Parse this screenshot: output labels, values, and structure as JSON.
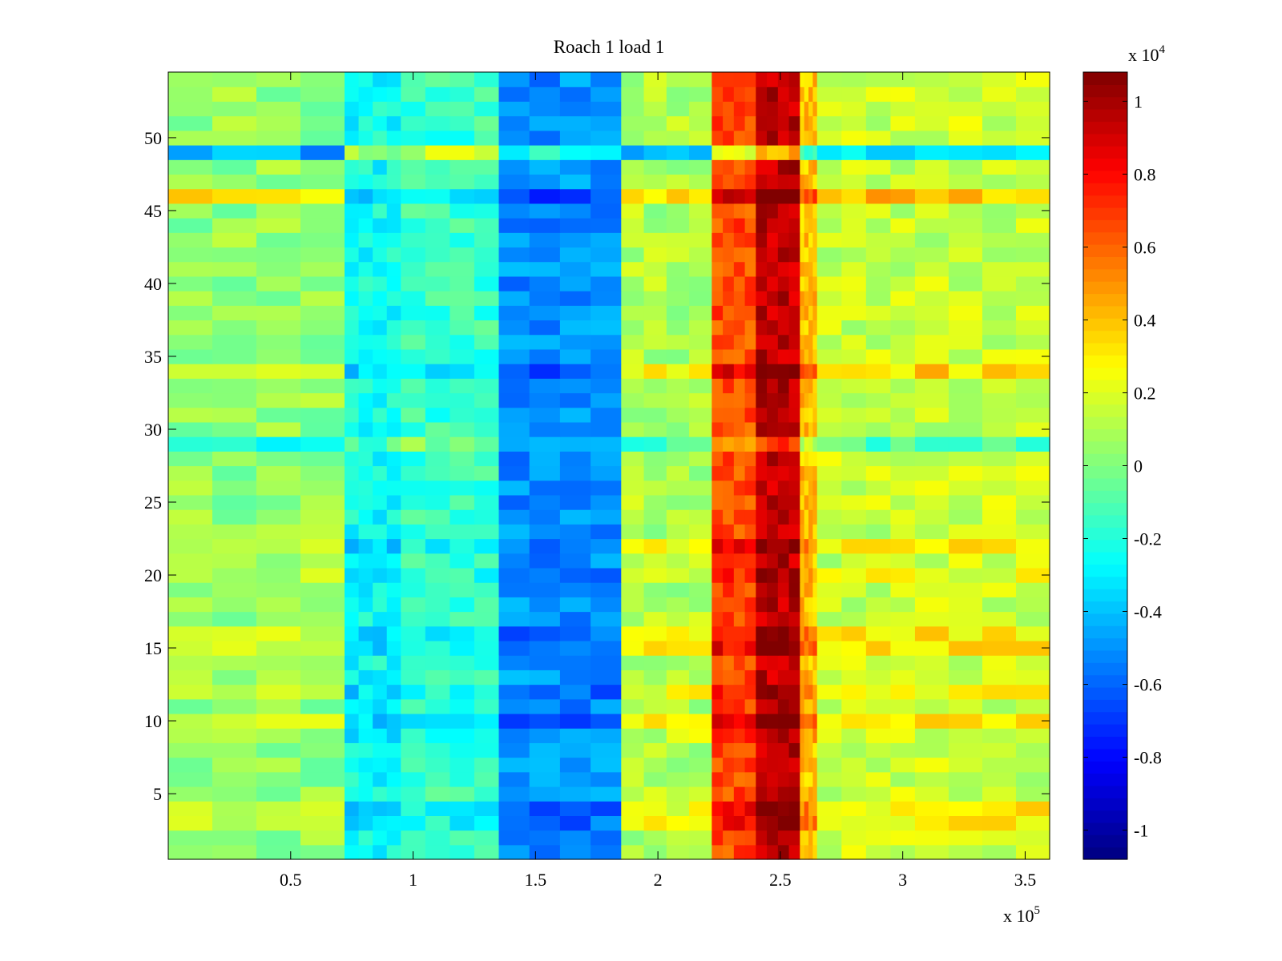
{
  "chart_data": {
    "type": "heatmap",
    "title": "Roach 1 load 1",
    "xlabel": "",
    "ylabel": "",
    "x_range": [
      0,
      360000
    ],
    "y_range": [
      0.5,
      54.5
    ],
    "rows": 54,
    "x_ticks": [
      50000,
      100000,
      150000,
      200000,
      250000,
      300000,
      350000
    ],
    "x_tick_labels": [
      "0.5",
      "1",
      "1.5",
      "2",
      "2.5",
      "3",
      "3.5"
    ],
    "x_multiplier": {
      "base": "x 10",
      "exponent": "5"
    },
    "y_ticks": [
      5,
      10,
      15,
      20,
      25,
      30,
      35,
      40,
      45,
      50
    ],
    "y_tick_labels": [
      "5",
      "10",
      "15",
      "20",
      "25",
      "30",
      "35",
      "40",
      "45",
      "50"
    ],
    "colormap": "jet",
    "clim": [
      -10800,
      10800
    ],
    "colorbar": {
      "ticks": [
        -10000,
        -8000,
        -6000,
        -4000,
        -2000,
        0,
        2000,
        4000,
        6000,
        8000,
        10000
      ],
      "tick_labels": [
        "-1",
        "-0.8",
        "-0.6",
        "-0.4",
        "-0.2",
        "0",
        "0.2",
        "0.4",
        "0.6",
        "0.8",
        "1"
      ],
      "multiplier": {
        "base": "x 10",
        "exponent": "4"
      }
    },
    "grid": false,
    "bands": [
      {
        "x": [
          0,
          72000
        ],
        "base": 400
      },
      {
        "x": [
          72000,
          95000
        ],
        "base": -2500
      },
      {
        "x": [
          95000,
          135000
        ],
        "base": -1500
      },
      {
        "x": [
          135000,
          185000
        ],
        "base": -5000
      },
      {
        "x": [
          185000,
          222000
        ],
        "base": 1000
      },
      {
        "x": [
          222000,
          240000
        ],
        "base": 6500
      },
      {
        "x": [
          240000,
          258000
        ],
        "base": 9500
      },
      {
        "x": [
          258000,
          265000
        ],
        "base": 4000
      },
      {
        "x": [
          265000,
          305000
        ],
        "base": 1500
      },
      {
        "x": [
          305000,
          360000
        ],
        "base": 1500
      }
    ],
    "row_offsets": [
      {
        "row": 49,
        "value": -5000
      },
      {
        "row": 46,
        "value": 2500
      },
      {
        "row": 34,
        "value": 2000
      },
      {
        "row": 29,
        "value": -2500
      },
      {
        "row": 22,
        "value": 1500
      },
      {
        "row": 20,
        "value": 800
      },
      {
        "row": 16,
        "value": 1500
      },
      {
        "row": 15,
        "value": 1800
      },
      {
        "row": 12,
        "value": 1500
      },
      {
        "row": 10,
        "value": 1800
      },
      {
        "row": 9,
        "value": 500
      },
      {
        "row": 4,
        "value": 1500
      },
      {
        "row": 3,
        "value": 1500
      }
    ]
  }
}
